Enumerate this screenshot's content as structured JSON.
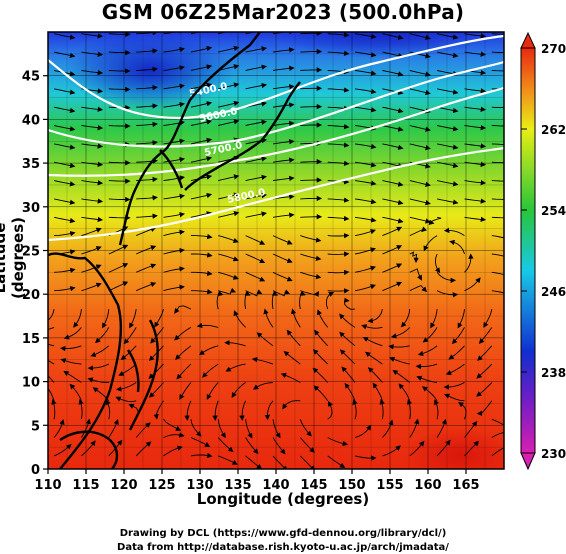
{
  "title": "GSM 06Z25Mar2023 (500.0hPa)",
  "axes": {
    "xlabel": "Longitude (degrees)",
    "ylabel": "Latitude (degrees)",
    "xticks": [
      "110",
      "115",
      "120",
      "125",
      "130",
      "135",
      "140",
      "145",
      "150",
      "155",
      "160",
      "165"
    ],
    "yticks": [
      "0",
      "5",
      "10",
      "15",
      "20",
      "25",
      "30",
      "35",
      "40",
      "45"
    ],
    "xlim": [
      110,
      170
    ],
    "ylim": [
      0,
      50
    ]
  },
  "colorbar": {
    "ticks": [
      "230",
      "238",
      "246",
      "254",
      "262",
      "270"
    ],
    "range": [
      230,
      270
    ],
    "colors": [
      "#d81fb2",
      "#1030d0",
      "#19c8e6",
      "#27c63a",
      "#e8ee14",
      "#e82a10"
    ]
  },
  "contours": [
    {
      "label": "5400.0"
    },
    {
      "label": "5600.0"
    },
    {
      "label": "5700.0"
    },
    {
      "label": "5800.0"
    }
  ],
  "credits": {
    "line1": "Drawing by DCL (https://www.gfd-dennou.org/library/dcl/)",
    "line2": "Data from http://database.rish.kyoto-u.ac.jp/arch/jmadata/"
  }
}
